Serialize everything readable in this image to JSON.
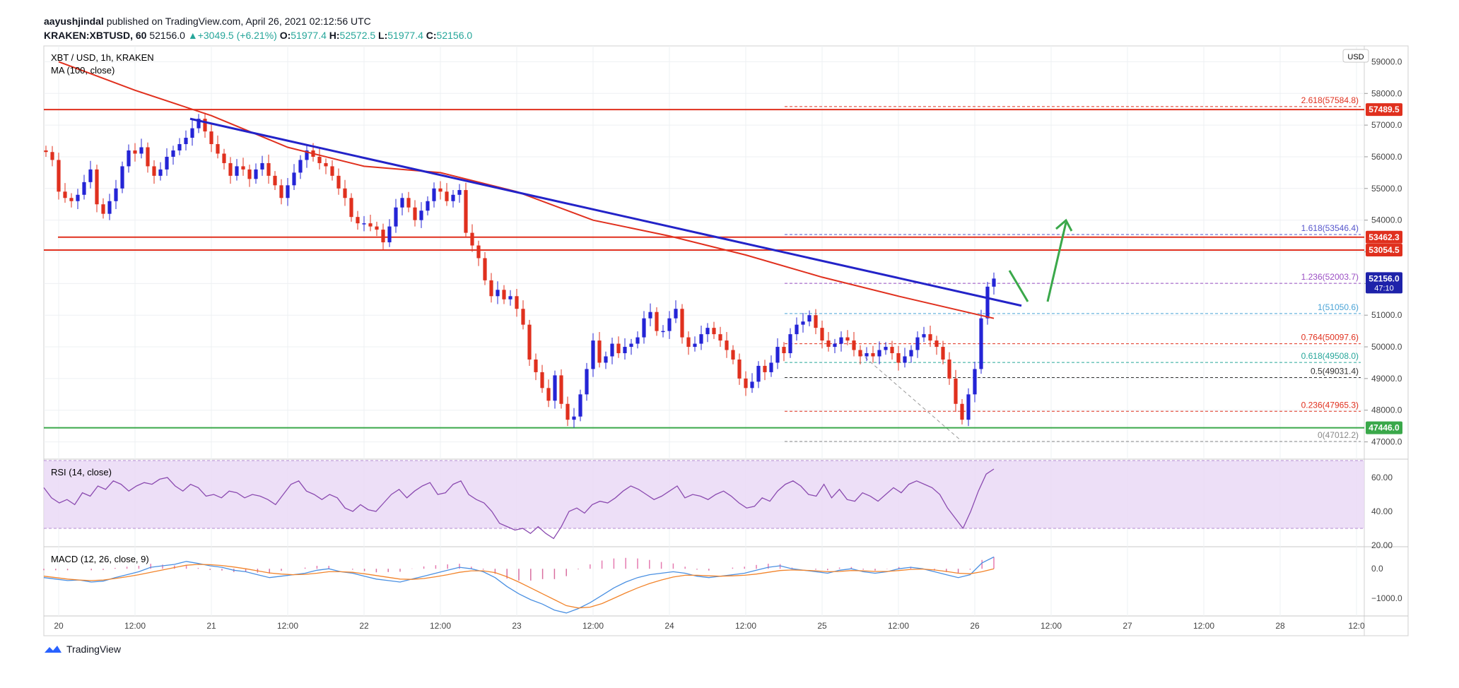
{
  "header": {
    "author": "aayushjindal",
    "published_text": "published on TradingView.com, April 26, 2021 02:12:56 UTC",
    "symbol_line": "KRAKEN:XBTUSD, 60",
    "last": "52156.0",
    "change": "+3049.5 (+6.21%)",
    "o_label": "O:",
    "o": "51977.4",
    "h_label": "H:",
    "h": "52572.5",
    "l_label": "L:",
    "l": "51977.4",
    "c_label": "C:",
    "c": "52156.0"
  },
  "footer": {
    "brand": "TradingView"
  },
  "colors": {
    "up": "#2424d6",
    "down": "#e0301e",
    "ma": "#e0301e",
    "trend": "#2323c8",
    "resistance": "#e0301e",
    "support": "#3aa84a",
    "arrow": "#3aa84a",
    "rsi_fill": "#e9d7f5",
    "rsi_line": "#8b4bb0",
    "macd_line": "#4a90e2",
    "signal_line": "#f2842b"
  },
  "chart_data": [
    {
      "type": "candlestick",
      "title": "XBT / USD, 1h, KRAKEN",
      "indicator": "MA (100, close)",
      "currency": "USD",
      "xlabel": "",
      "ylabel": "",
      "ylim": [
        46500,
        59500
      ],
      "y_ticks": [
        "47000.0",
        "48000.0",
        "49000.0",
        "50000.0",
        "51000.0",
        "52000.0",
        "53000.0",
        "54000.0",
        "55000.0",
        "56000.0",
        "57000.0",
        "58000.0",
        "59000.0"
      ],
      "x_ticks": [
        "20",
        "12:00",
        "21",
        "12:00",
        "22",
        "12:00",
        "23",
        "12:00",
        "24",
        "12:00",
        "25",
        "12:00",
        "26",
        "12:00",
        "27",
        "12:00",
        "28",
        "12:0"
      ],
      "price_labels": [
        {
          "text": "57489.5",
          "value": 57489.5,
          "color": "#e0301e"
        },
        {
          "text": "53462.3",
          "value": 53462.3,
          "color": "#e0301e"
        },
        {
          "text": "53054.5",
          "value": 53054.5,
          "color": "#e0301e"
        },
        {
          "text": "52156.0",
          "value": 52156.0,
          "color": "#1e22aa",
          "sub": "47:10"
        },
        {
          "text": "47446.0",
          "value": 47446.0,
          "color": "#3aa84a"
        }
      ],
      "fib_levels": [
        {
          "label": "2.618(57584.8)",
          "value": 57584.8,
          "color": "#e0301e"
        },
        {
          "label": "1.618(53546.4)",
          "value": 53546.4,
          "color": "#5555cc"
        },
        {
          "label": "1.236(52003.7)",
          "value": 52003.7,
          "color": "#9b4fc4"
        },
        {
          "label": "1(51050.6)",
          "value": 51050.6,
          "color": "#4aa3d6"
        },
        {
          "label": "0.764(50097.6)",
          "value": 50097.6,
          "color": "#e0301e"
        },
        {
          "label": "0.618(49508.0)",
          "value": 49508.0,
          "color": "#26a69a"
        },
        {
          "label": "0.5(49031.4)",
          "value": 49031.4,
          "color": "#333333"
        },
        {
          "label": "0.236(47965.3)",
          "value": 47965.3,
          "color": "#e0301e"
        },
        {
          "label": "0(47012.2)",
          "value": 47012.2,
          "color": "#888888"
        }
      ],
      "candles_close": [
        56150,
        55900,
        54900,
        54700,
        54600,
        54800,
        55200,
        55600,
        54500,
        54200,
        54600,
        55000,
        55700,
        56200,
        56100,
        56300,
        55700,
        55400,
        55600,
        56000,
        56200,
        56400,
        56600,
        56900,
        57200,
        56800,
        56400,
        56100,
        55800,
        55400,
        55700,
        55600,
        55300,
        55600,
        55800,
        55400,
        55100,
        54700,
        55100,
        55500,
        55900,
        56200,
        56000,
        55800,
        55700,
        55400,
        55000,
        54700,
        54100,
        53900,
        53900,
        53800,
        53700,
        53300,
        53800,
        54400,
        54700,
        54400,
        54000,
        54300,
        54600,
        55000,
        54900,
        54600,
        54800,
        54950,
        53600,
        53200,
        52800,
        52100,
        51600,
        51800,
        51500,
        51600,
        51200,
        50700,
        49600,
        49200,
        48700,
        48300,
        49100,
        48200,
        47700,
        47800,
        48500,
        49300,
        50200,
        49500,
        49700,
        50100,
        49800,
        50000,
        50100,
        50300,
        50900,
        51100,
        50500,
        50500,
        50900,
        51200,
        50300,
        50000,
        50100,
        50400,
        50600,
        50400,
        50200,
        49900,
        49600,
        49000,
        48700,
        48900,
        49400,
        49200,
        49500,
        50000,
        49800,
        50400,
        50700,
        50800,
        51000,
        50600,
        50200,
        50000,
        50100,
        50300,
        50200,
        49900,
        49700,
        49800,
        49700,
        49900,
        50000,
        49800,
        49500,
        49700,
        49900,
        50300,
        50400,
        50200,
        50000,
        49600,
        49000,
        48200,
        47700,
        48500,
        49300,
        50900,
        51900,
        52156
      ],
      "ma100": [
        {
          "t": "20 00:00",
          "v": 59000
        },
        {
          "t": "20 12:00",
          "v": 58100
        },
        {
          "t": "21 00:00",
          "v": 57300
        },
        {
          "t": "21 12:00",
          "v": 56300
        },
        {
          "t": "22 00:00",
          "v": 55700
        },
        {
          "t": "22 12:00",
          "v": 55500
        },
        {
          "t": "23 00:00",
          "v": 54900
        },
        {
          "t": "23 12:00",
          "v": 54000
        },
        {
          "t": "24 00:00",
          "v": 53500
        },
        {
          "t": "24 12:00",
          "v": 52900
        },
        {
          "t": "25 00:00",
          "v": 52200
        },
        {
          "t": "25 12:00",
          "v": 51600
        },
        {
          "t": "26 03:00",
          "v": 50900
        }
      ],
      "trendline": [
        {
          "t": "21 00:00",
          "v": 57200
        },
        {
          "t": "26 12:00",
          "v": 51300
        }
      ],
      "resistance": [
        57489.5,
        53462.3,
        53054.5
      ],
      "support": [
        47446.0
      ]
    },
    {
      "type": "line",
      "title": "RSI (14, close)",
      "ylim": [
        20,
        70
      ],
      "y_ticks": [
        "60.00",
        "40.00",
        "20.00"
      ],
      "band": [
        30,
        70
      ],
      "values": [
        54,
        48,
        45,
        47,
        44,
        51,
        49,
        55,
        53,
        58,
        56,
        52,
        55,
        57,
        56,
        59,
        60,
        55,
        52,
        56,
        54,
        49,
        50,
        48,
        52,
        51,
        48,
        50,
        49,
        47,
        44,
        50,
        56,
        58,
        52,
        50,
        47,
        50,
        48,
        42,
        40,
        44,
        41,
        40,
        45,
        50,
        53,
        48,
        52,
        55,
        57,
        50,
        51,
        56,
        58,
        50,
        47,
        45,
        40,
        33,
        31,
        29,
        30,
        27,
        31,
        27,
        24,
        31,
        40,
        42,
        39,
        44,
        46,
        45,
        48,
        52,
        55,
        53,
        50,
        47,
        49,
        52,
        55,
        48,
        50,
        49,
        47,
        50,
        52,
        49,
        45,
        42,
        43,
        48,
        46,
        52,
        56,
        58,
        55,
        50,
        49,
        56,
        48,
        53,
        47,
        46,
        51,
        49,
        46,
        50,
        54,
        51,
        56,
        58,
        56,
        54,
        50,
        42,
        36,
        30,
        40,
        52,
        62,
        65
      ]
    },
    {
      "type": "bar+line",
      "title": "MACD (12, 26, close, 9)",
      "ylim": [
        -1600,
        700
      ],
      "y_ticks": [
        "0.0",
        "−1000.0"
      ],
      "macd_line": [
        -300,
        -350,
        -400,
        -380,
        -450,
        -420,
        -300,
        -200,
        -100,
        50,
        100,
        150,
        250,
        180,
        100,
        50,
        -50,
        -100,
        -200,
        -300,
        -250,
        -200,
        -150,
        -50,
        0,
        -100,
        -150,
        -250,
        -350,
        -400,
        -450,
        -350,
        -250,
        -150,
        -50,
        50,
        0,
        -100,
        -300,
        -600,
        -850,
        -1050,
        -1200,
        -1400,
        -1500,
        -1350,
        -1150,
        -900,
        -650,
        -450,
        -300,
        -200,
        -150,
        -100,
        -150,
        -250,
        -300,
        -250,
        -200,
        -150,
        -50,
        50,
        100,
        0,
        -50,
        -100,
        -150,
        -50,
        0,
        -100,
        -150,
        -100,
        0,
        50,
        0,
        -100,
        -200,
        -300,
        -200,
        200,
        400
      ],
      "signal_line": [
        -250,
        -300,
        -350,
        -380,
        -400,
        -380,
        -330,
        -270,
        -200,
        -120,
        -40,
        40,
        120,
        150,
        140,
        110,
        60,
        0,
        -70,
        -140,
        -180,
        -200,
        -190,
        -150,
        -100,
        -100,
        -120,
        -170,
        -230,
        -290,
        -350,
        -360,
        -330,
        -270,
        -200,
        -120,
        -70,
        -70,
        -130,
        -270,
        -450,
        -650,
        -850,
        -1050,
        -1250,
        -1330,
        -1300,
        -1180,
        -1000,
        -820,
        -650,
        -500,
        -380,
        -280,
        -220,
        -220,
        -240,
        -250,
        -240,
        -220,
        -180,
        -120,
        -60,
        -40,
        -50,
        -70,
        -100,
        -90,
        -60,
        -70,
        -90,
        -90,
        -60,
        -20,
        -10,
        -40,
        -90,
        -150,
        -170,
        -100,
        0
      ]
    }
  ]
}
